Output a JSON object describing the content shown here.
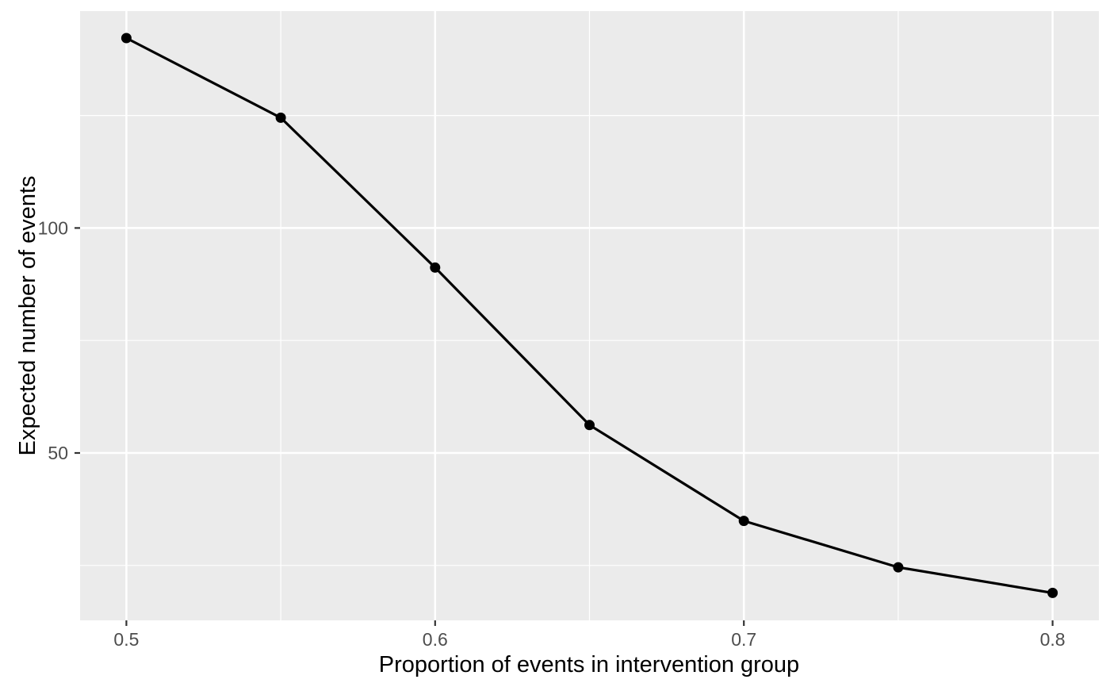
{
  "chart_data": {
    "type": "line",
    "title": "",
    "xlabel": "Proportion of events in intervention group",
    "ylabel": "Expected number of events",
    "x": [
      0.5,
      0.55,
      0.6,
      0.65,
      0.7,
      0.75,
      0.8
    ],
    "y": [
      142.2,
      124.5,
      91.2,
      56.2,
      34.9,
      24.6,
      18.9
    ],
    "series_name": "Expected number of events",
    "xlim": [
      0.485,
      0.815
    ],
    "ylim": [
      12.8,
      148.2
    ],
    "x_major_ticks": [
      0.5,
      0.6,
      0.7,
      0.8
    ],
    "x_tick_labels": [
      "0.5",
      "0.6",
      "0.7",
      "0.8"
    ],
    "x_minor_ticks": [
      0.55,
      0.65,
      0.75
    ],
    "y_major_ticks": [
      50,
      100
    ],
    "y_tick_labels": [
      "50",
      "100"
    ],
    "y_minor_ticks": [
      25,
      75,
      125
    ],
    "grid": true,
    "legend_position": "none",
    "marker": "point",
    "theme": "ggplot2-grey"
  },
  "colors": {
    "page_bg": "#FFFFFF",
    "panel_bg": "#EBEBEB",
    "grid_major": "#FFFFFF",
    "grid_minor": "#FFFFFF",
    "line": "#000000",
    "point": "#000000",
    "tick_mark": "#333333",
    "tick_label": "#4D4D4D",
    "axis_title": "#000000"
  }
}
